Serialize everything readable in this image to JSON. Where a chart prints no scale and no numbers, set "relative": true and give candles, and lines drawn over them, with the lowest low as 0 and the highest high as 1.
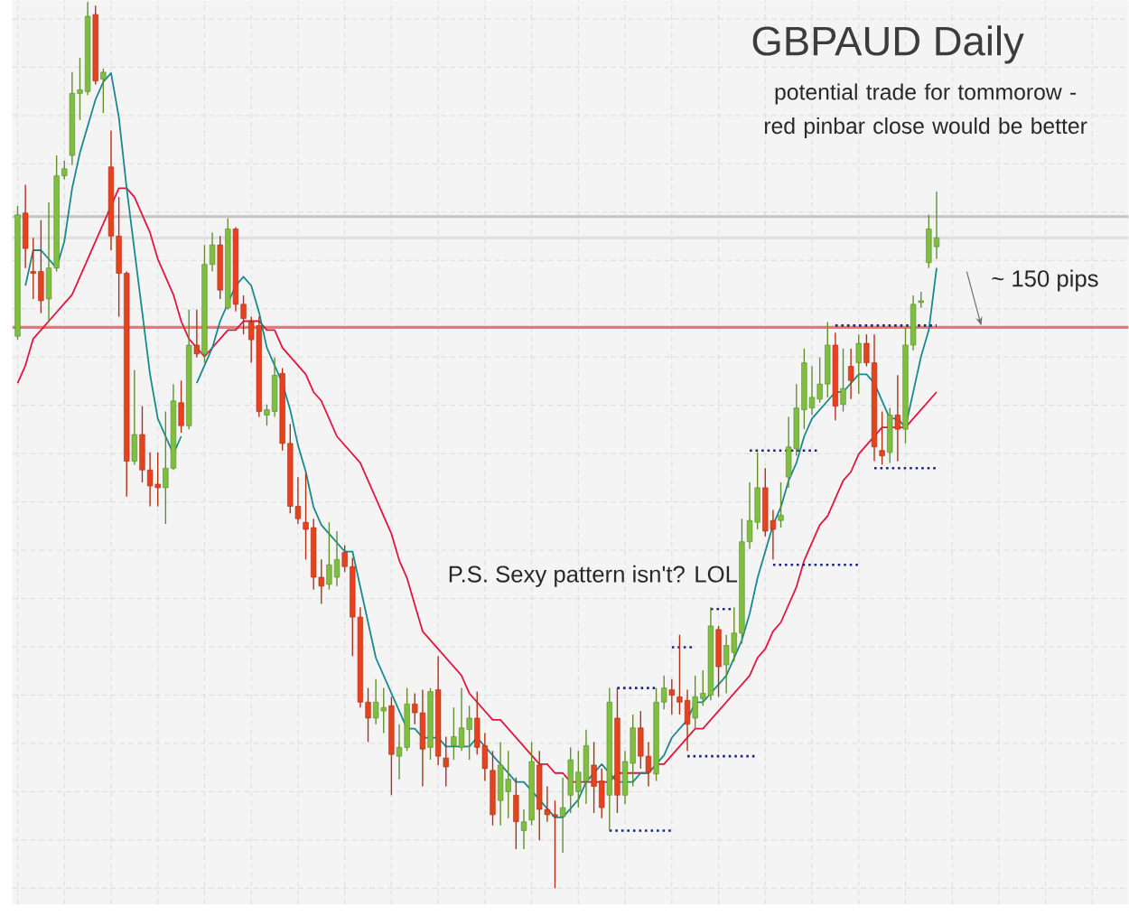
{
  "chart_data": {
    "type": "candlestick",
    "title": "GBPAUD Daily",
    "subtitle": "potential trade  for tommorow - red pinbar close would be better",
    "annotations": [
      "~ 150 pips",
      "P.S. Sexy pattern isn't? LOL"
    ],
    "relative": true,
    "grid": true,
    "categories": [
      null,
      null,
      null,
      null,
      null,
      null,
      null,
      null,
      null,
      null,
      null,
      null,
      null,
      null,
      null,
      null,
      null,
      null,
      null,
      null,
      null,
      null,
      null,
      null,
      null,
      null,
      null,
      null,
      null,
      null,
      null,
      null,
      null,
      null,
      null,
      null,
      null,
      null,
      null,
      null,
      null,
      null,
      null,
      null,
      null,
      null,
      null,
      null,
      null,
      null,
      null,
      null,
      null,
      null,
      null,
      null,
      null,
      null,
      null,
      null,
      null,
      null,
      null,
      null,
      null,
      null,
      null,
      null,
      null,
      null,
      null,
      null,
      null,
      null,
      null,
      null,
      null,
      null,
      null,
      null,
      null,
      null,
      null,
      null,
      null,
      null,
      null,
      null,
      null,
      null,
      null,
      null,
      null,
      null,
      null,
      null,
      null,
      null,
      null,
      null,
      null,
      null,
      null,
      null,
      null,
      null,
      null,
      null,
      null,
      null,
      null,
      null,
      null,
      null,
      null,
      null,
      null,
      null,
      null
    ],
    "ohlc": [
      [
        0.623,
        0.77,
        0.619,
        0.76
      ],
      [
        0.762,
        0.794,
        0.7,
        0.722
      ],
      [
        0.696,
        0.734,
        0.665,
        0.694
      ],
      [
        0.696,
        0.754,
        0.649,
        0.663
      ],
      [
        0.665,
        0.774,
        0.639,
        0.7
      ],
      [
        0.7,
        0.827,
        0.696,
        0.804
      ],
      [
        0.804,
        0.821,
        0.8,
        0.812
      ],
      [
        0.827,
        0.921,
        0.816,
        0.897
      ],
      [
        0.897,
        0.937,
        0.867,
        0.901
      ],
      [
        0.899,
        1,
        0.895,
        0.984
      ],
      [
        0.986,
        0.996,
        0.907,
        0.911
      ],
      [
        0.913,
        0.925,
        0.875,
        0.921
      ],
      [
        0.814,
        0.855,
        0.72,
        0.736
      ],
      [
        0.736,
        0.78,
        0.645,
        0.694
      ],
      [
        0.694,
        0.696,
        0.442,
        0.482
      ],
      [
        0.482,
        0.585,
        0.478,
        0.512
      ],
      [
        0.512,
        0.544,
        0.458,
        0.472
      ],
      [
        0.472,
        0.492,
        0.431,
        0.454
      ],
      [
        0.456,
        0.492,
        0.431,
        0.452
      ],
      [
        0.452,
        0.538,
        0.411,
        0.474
      ],
      [
        0.474,
        0.569,
        0.472,
        0.55
      ],
      [
        0.548,
        0.573,
        0.514,
        0.522
      ],
      [
        0.522,
        0.653,
        0.518,
        0.613
      ],
      [
        0.613,
        0.653,
        0.599,
        0.603
      ],
      [
        0.603,
        0.726,
        0.593,
        0.704
      ],
      [
        0.704,
        0.74,
        0.696,
        0.726
      ],
      [
        0.726,
        0.736,
        0.665,
        0.675
      ],
      [
        0.655,
        0.756,
        0.653,
        0.744
      ],
      [
        0.744,
        0.746,
        0.651,
        0.659
      ],
      [
        0.659,
        0.669,
        0.625,
        0.643
      ],
      [
        0.639,
        0.645,
        0.593,
        0.619
      ],
      [
        0.635,
        0.645,
        0.532,
        0.538
      ],
      [
        0.534,
        0.546,
        0.522,
        0.54
      ],
      [
        0.538,
        0.599,
        0.532,
        0.579
      ],
      [
        0.581,
        0.587,
        0.494,
        0.502
      ],
      [
        0.502,
        0.524,
        0.423,
        0.431
      ],
      [
        0.431,
        0.464,
        0.411,
        0.417
      ],
      [
        0.413,
        0.468,
        0.371,
        0.405
      ],
      [
        0.407,
        0.417,
        0.337,
        0.351
      ],
      [
        0.351,
        0.371,
        0.321,
        0.341
      ],
      [
        0.343,
        0.413,
        0.337,
        0.365
      ],
      [
        0.351,
        0.403,
        0.341,
        0.371
      ],
      [
        0.379,
        0.387,
        0.357,
        0.363
      ],
      [
        0.363,
        0.373,
        0.262,
        0.306
      ],
      [
        0.306,
        0.317,
        0.204,
        0.21
      ],
      [
        0.21,
        0.226,
        0.165,
        0.192
      ],
      [
        0.192,
        0.236,
        0.185,
        0.21
      ],
      [
        0.2,
        0.226,
        0.175,
        0.204
      ],
      [
        0.206,
        0.216,
        0.105,
        0.151
      ],
      [
        0.149,
        0.185,
        0.123,
        0.159
      ],
      [
        0.159,
        0.226,
        0.155,
        0.208
      ],
      [
        0.208,
        0.22,
        0.185,
        0.198
      ],
      [
        0.198,
        0.224,
        0.115,
        0.157
      ],
      [
        0.159,
        0.226,
        0.145,
        0.222
      ],
      [
        0.224,
        0.262,
        0.139,
        0.149
      ],
      [
        0.147,
        0.171,
        0.115,
        0.137
      ],
      [
        0.161,
        0.204,
        0.145,
        0.171
      ],
      [
        0.159,
        0.226,
        0.155,
        0.181
      ],
      [
        0.179,
        0.206,
        0.145,
        0.192
      ],
      [
        0.192,
        0.222,
        0.151,
        0.159
      ],
      [
        0.161,
        0.175,
        0.121,
        0.135
      ],
      [
        0.133,
        0.155,
        0.071,
        0.083
      ],
      [
        0.099,
        0.165,
        0.071,
        0.139
      ],
      [
        0.109,
        0.155,
        0.079,
        0.123
      ],
      [
        0.105,
        0.125,
        0.044,
        0.075
      ],
      [
        0.065,
        0.089,
        0.044,
        0.075
      ],
      [
        0.077,
        0.165,
        0.071,
        0.143
      ],
      [
        0.139,
        0.155,
        0.054,
        0.089
      ],
      [
        0.089,
        0.115,
        0.075,
        0.083
      ],
      [
        0.083,
        0.099,
        0,
        0.081
      ],
      [
        0.081,
        0.125,
        0.04,
        0.091
      ],
      [
        0.105,
        0.159,
        0.085,
        0.145
      ],
      [
        0.109,
        0.155,
        0.091,
        0.131
      ],
      [
        0.121,
        0.179,
        0.095,
        0.161
      ],
      [
        0.139,
        0.165,
        0.085,
        0.115
      ],
      [
        0.121,
        0.135,
        0.079,
        0.091
      ],
      [
        0.105,
        0.226,
        0.065,
        0.21
      ],
      [
        0.192,
        0.226,
        0.085,
        0.105
      ],
      [
        0.105,
        0.155,
        0.095,
        0.143
      ],
      [
        0.141,
        0.196,
        0.115,
        0.181
      ],
      [
        0.181,
        0.2,
        0.135,
        0.149
      ],
      [
        0.149,
        0.165,
        0.115,
        0.131
      ],
      [
        0.129,
        0.226,
        0.121,
        0.21
      ],
      [
        0.21,
        0.24,
        0.202,
        0.226
      ],
      [
        0.224,
        0.236,
        0.196,
        0.218
      ],
      [
        0.216,
        0.286,
        0.196,
        0.21
      ],
      [
        0.212,
        0.224,
        0.155,
        0.185
      ],
      [
        0.192,
        0.24,
        0.179,
        0.216
      ],
      [
        0.214,
        0.246,
        0.206,
        0.22
      ],
      [
        0.218,
        0.317,
        0.212,
        0.296
      ],
      [
        0.292,
        0.296,
        0.216,
        0.25
      ],
      [
        0.252,
        0.286,
        0.22,
        0.274
      ],
      [
        0.266,
        0.317,
        0.256,
        0.288
      ],
      [
        0.288,
        0.417,
        0.276,
        0.391
      ],
      [
        0.391,
        0.458,
        0.383,
        0.415
      ],
      [
        0.413,
        0.492,
        0.405,
        0.452
      ],
      [
        0.452,
        0.474,
        0.397,
        0.403
      ],
      [
        0.415,
        0.427,
        0.371,
        0.405
      ],
      [
        0.415,
        0.458,
        0.407,
        0.421
      ],
      [
        0.464,
        0.532,
        0.452,
        0.498
      ],
      [
        0.496,
        0.569,
        0.488,
        0.542
      ],
      [
        0.54,
        0.609,
        0.518,
        0.593
      ],
      [
        0.542,
        0.589,
        0.534,
        0.554
      ],
      [
        0.552,
        0.599,
        0.548,
        0.569
      ],
      [
        0.569,
        0.639,
        0.554,
        0.613
      ],
      [
        0.613,
        0.627,
        0.528,
        0.544
      ],
      [
        0.546,
        0.609,
        0.538,
        0.564
      ],
      [
        0.589,
        0.609,
        0.552,
        0.573
      ],
      [
        0.593,
        0.625,
        0.558,
        0.615
      ],
      [
        0.615,
        0.625,
        0.589,
        0.593
      ],
      [
        0.593,
        0.625,
        0.482,
        0.498
      ],
      [
        0.494,
        0.538,
        0.478,
        0.488
      ],
      [
        0.492,
        0.542,
        0.48,
        0.534
      ],
      [
        0.534,
        0.579,
        0.482,
        0.518
      ],
      [
        0.518,
        0.633,
        0.502,
        0.613
      ],
      [
        0.613,
        0.669,
        0.607,
        0.659
      ],
      [
        0.661,
        0.673,
        0.655,
        0.663
      ],
      [
        0.706,
        0.76,
        0.7,
        0.744
      ],
      [
        0.724,
        0.786,
        0.71,
        0.734
      ]
    ],
    "colors": [
      "#7fbf3f",
      "#e8411d",
      "#e8411d",
      "#e8411d",
      "#7fbf3f",
      "#7fbf3f",
      "#7fbf3f",
      "#7fbf3f",
      "#7fbf3f",
      "#7fbf3f",
      "#e8411d",
      "#7fbf3f",
      "#e8411d",
      "#e8411d",
      "#e8411d",
      "#7fbf3f",
      "#e8411d",
      "#e8411d",
      "#e8411d",
      "#7fbf3f",
      "#7fbf3f",
      "#e8411d",
      "#7fbf3f",
      "#e8411d",
      "#7fbf3f",
      "#7fbf3f",
      "#e8411d",
      "#7fbf3f",
      "#e8411d",
      "#e8411d",
      "#e8411d",
      "#e8411d",
      "#7fbf3f",
      "#7fbf3f",
      "#e8411d",
      "#e8411d",
      "#e8411d",
      "#e8411d",
      "#e8411d",
      "#e8411d",
      "#7fbf3f",
      "#7fbf3f",
      "#e8411d",
      "#e8411d",
      "#e8411d",
      "#e8411d",
      "#7fbf3f",
      "#7fbf3f",
      "#e8411d",
      "#7fbf3f",
      "#7fbf3f",
      "#e8411d",
      "#e8411d",
      "#7fbf3f",
      "#e8411d",
      "#e8411d",
      "#7fbf3f",
      "#7fbf3f",
      "#7fbf3f",
      "#e8411d",
      "#e8411d",
      "#e8411d",
      "#7fbf3f",
      "#7fbf3f",
      "#e8411d",
      "#7fbf3f",
      "#7fbf3f",
      "#e8411d",
      "#e8411d",
      "#e8411d",
      "#7fbf3f",
      "#7fbf3f",
      "#7fbf3f",
      "#7fbf3f",
      "#e8411d",
      "#e8411d",
      "#7fbf3f",
      "#e8411d",
      "#7fbf3f",
      "#7fbf3f",
      "#e8411d",
      "#e8411d",
      "#7fbf3f",
      "#7fbf3f",
      "#e8411d",
      "#e8411d",
      "#e8411d",
      "#7fbf3f",
      "#7fbf3f",
      "#7fbf3f",
      "#e8411d",
      "#7fbf3f",
      "#7fbf3f",
      "#7fbf3f",
      "#7fbf3f",
      "#7fbf3f",
      "#e8411d",
      "#e8411d",
      "#7fbf3f",
      "#7fbf3f",
      "#7fbf3f",
      "#7fbf3f",
      "#7fbf3f",
      "#7fbf3f",
      "#7fbf3f",
      "#e8411d",
      "#7fbf3f",
      "#e8411d",
      "#7fbf3f",
      "#e8411d",
      "#e8411d",
      "#e8411d",
      "#7fbf3f",
      "#e8411d",
      "#7fbf3f",
      "#7fbf3f",
      "#7fbf3f",
      "#7fbf3f",
      "#7fbf3f"
    ],
    "series": [
      {
        "type": "line",
        "color": "#e0143c",
        "values": [
          0.57,
          0.59,
          0.62,
          0.63,
          0.64,
          0.65,
          0.66,
          0.67,
          0.69,
          0.71,
          0.73,
          0.75,
          0.77,
          0.79,
          0.79,
          0.78,
          0.76,
          0.74,
          0.71,
          0.69,
          0.67,
          0.64,
          0.62,
          0.61,
          0.6,
          0.61,
          0.62,
          0.63,
          0.63,
          0.64,
          0.64,
          0.64,
          0.63,
          0.63,
          0.61,
          0.6,
          0.59,
          0.58,
          0.56,
          0.55,
          0.53,
          0.51,
          0.5,
          0.49,
          0.48,
          0.46,
          0.44,
          0.42,
          0.4,
          0.37,
          0.35,
          0.32,
          0.29,
          0.28,
          0.27,
          0.26,
          0.25,
          0.24,
          0.22,
          0.21,
          0.2,
          0.19,
          0.19,
          0.18,
          0.17,
          0.16,
          0.15,
          0.14,
          0.14,
          0.13,
          0.13,
          0.12,
          0.12,
          0.12,
          0.12,
          0.12,
          0.12,
          0.13,
          0.13,
          0.13,
          0.13,
          0.13,
          0.14,
          0.14,
          0.15,
          0.16,
          0.17,
          0.18,
          0.18,
          0.19,
          0.2,
          0.21,
          0.22,
          0.23,
          0.24,
          0.26,
          0.27,
          0.29,
          0.3,
          0.32,
          0.34,
          0.37,
          0.39,
          0.41,
          0.42,
          0.44,
          0.46,
          0.47,
          0.49,
          0.5,
          0.51,
          0.52,
          0.52,
          0.52,
          0.52,
          0.53,
          0.54,
          0.55,
          0.56
        ]
      },
      {
        "type": "line",
        "color": "#17888c",
        "values": [
          null,
          0.68,
          0.72,
          0.72,
          0.71,
          0.7,
          0.73,
          0.79,
          0.83,
          0.86,
          0.89,
          0.91,
          0.92,
          0.87,
          0.79,
          0.72,
          0.65,
          0.58,
          0.53,
          0.51,
          0.49,
          0.51,
          null,
          0.57,
          0.59,
          0.61,
          0.64,
          0.66,
          0.68,
          0.69,
          0.68,
          0.65,
          0.61,
          0.59,
          0.57,
          0.54,
          0.5,
          0.47,
          0.43,
          0.41,
          0.4,
          0.39,
          0.38,
          0.38,
          0.34,
          0.3,
          0.26,
          0.24,
          0.22,
          0.2,
          0.18,
          0.18,
          0.17,
          0.17,
          0.17,
          0.16,
          0.16,
          0.16,
          0.16,
          0.17,
          0.16,
          0.15,
          0.14,
          0.13,
          0.12,
          0.12,
          0.11,
          0.1,
          0.09,
          0.08,
          0.08,
          0.09,
          0.1,
          0.12,
          0.13,
          0.14,
          0.13,
          0.12,
          0.12,
          0.12,
          0.13,
          0.13,
          0.14,
          0.15,
          0.17,
          0.18,
          0.19,
          0.21,
          0.21,
          0.22,
          0.23,
          0.24,
          0.26,
          0.28,
          0.31,
          0.35,
          0.38,
          0.41,
          0.43,
          0.46,
          0.48,
          0.51,
          0.53,
          0.54,
          0.55,
          0.56,
          0.56,
          0.57,
          0.58,
          0.58,
          0.57,
          0.55,
          0.53,
          0.53,
          0.52,
          0.56,
          0.6,
          0.63,
          0.7
        ]
      },
      {
        "type": "line",
        "color": "#1a2380",
        "line_style": "dotted",
        "values": [
          null,
          null,
          null,
          null,
          null,
          null,
          null,
          null,
          null,
          null,
          null,
          null,
          null,
          null,
          null,
          null,
          null,
          null,
          null,
          null,
          null,
          null,
          null,
          null,
          null,
          null,
          null,
          null,
          null,
          null,
          null,
          null,
          null,
          null,
          null,
          null,
          null,
          null,
          null,
          null,
          null,
          null,
          null,
          null,
          null,
          null,
          null,
          null,
          null,
          null,
          null,
          null,
          null,
          null,
          null,
          null,
          null,
          null,
          null,
          null,
          null,
          null,
          null,
          null,
          null,
          null,
          null,
          null,
          null,
          null,
          null,
          null,
          null,
          null,
          null,
          null,
          0.065,
          0.065,
          0.065,
          0.065,
          0.065,
          0.065,
          0.065,
          0.065,
          0.065,
          null,
          0.149,
          0.149,
          0.149,
          0.149,
          0.149,
          0.149,
          0.149,
          0.149,
          0.149,
          0.149,
          null,
          0.365,
          0.365,
          0.365,
          0.365,
          0.365,
          0.365,
          0.365,
          0.365,
          0.365,
          0.365,
          0.365,
          0.365,
          null,
          0.474,
          0.474,
          0.474,
          0.474,
          0.474,
          0.474,
          0.474,
          0.474,
          0.474
        ]
      },
      {
        "type": "line",
        "color": "#1a2380",
        "line_style": "dotted",
        "values": [
          null,
          null,
          null,
          null,
          null,
          null,
          null,
          null,
          null,
          null,
          null,
          null,
          null,
          null,
          null,
          null,
          null,
          null,
          null,
          null,
          null,
          null,
          null,
          null,
          null,
          null,
          null,
          null,
          null,
          null,
          null,
          null,
          null,
          null,
          null,
          null,
          null,
          null,
          null,
          null,
          null,
          null,
          null,
          null,
          null,
          null,
          null,
          null,
          null,
          null,
          null,
          null,
          null,
          null,
          null,
          null,
          null,
          null,
          null,
          null,
          null,
          null,
          null,
          null,
          null,
          null,
          null,
          null,
          null,
          null,
          null,
          null,
          null,
          null,
          null,
          null,
          null,
          0.226,
          0.226,
          0.226,
          0.226,
          0.226,
          0.226,
          null,
          0.272,
          0.272,
          0.272,
          0.272,
          null,
          0.315,
          0.315,
          0.315,
          0.315,
          null,
          0.494,
          0.494,
          0.494,
          0.494,
          0.494,
          0.494,
          0.494,
          0.494,
          0.494,
          0.494,
          null,
          0.635,
          0.635,
          0.635,
          0.635,
          0.635,
          0.635,
          0.635,
          0.635,
          0.635,
          0.635,
          0.635,
          0.635,
          0.635,
          0.635
        ]
      }
    ],
    "ref_lines": [
      {
        "axis": "y",
        "value": 0.758,
        "color": "#c4c4c4"
      },
      {
        "axis": "y",
        "value": 0.734,
        "color": "#dedede"
      },
      {
        "axis": "y",
        "value": 0.633,
        "color": "#f07474"
      }
    ]
  }
}
